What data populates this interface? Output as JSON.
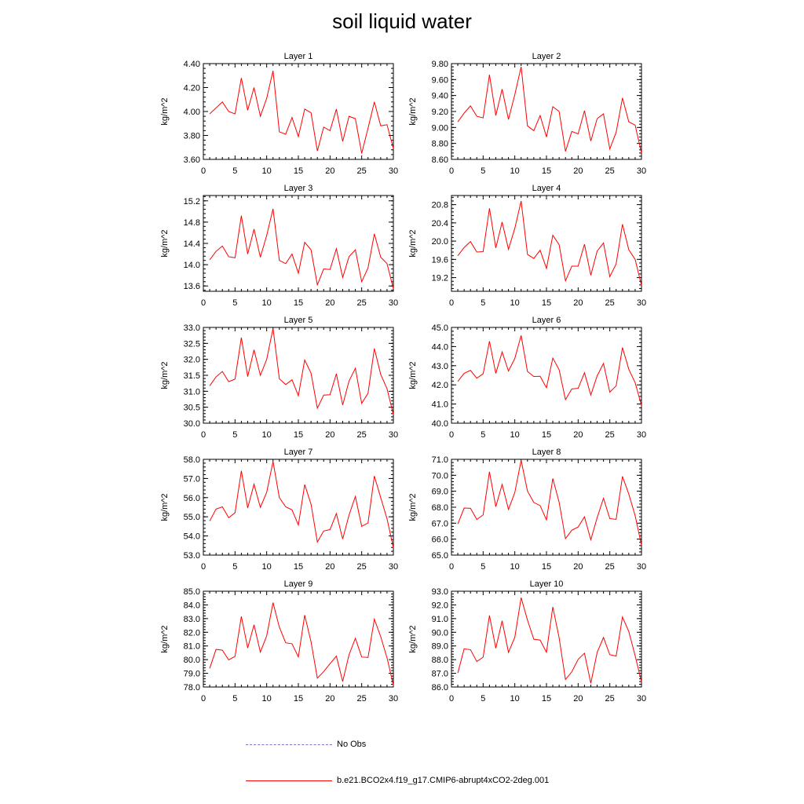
{
  "title": "soil liquid water",
  "colors": {
    "model_line": "#ff0000",
    "obs_line": "#7777cc"
  },
  "legend": [
    {
      "label": "No Obs",
      "style": "dashed",
      "color": "#7777cc"
    },
    {
      "label": "b.e21.BCO2x4.f19_g17.CMIP6-abrupt4xCO2-2deg.001",
      "style": "solid",
      "color": "#ff0000"
    }
  ],
  "chart_data": [
    {
      "type": "line",
      "title": "Layer 1",
      "xlabel": "",
      "ylabel": "kg/m^2",
      "xlim": [
        0,
        30
      ],
      "ylim": [
        3.6,
        4.4
      ],
      "xticks": [
        "0",
        "5",
        "10",
        "15",
        "20",
        "25",
        "30"
      ],
      "yticks": [
        "3.60",
        "3.80",
        "4.00",
        "4.20",
        "4.40"
      ],
      "x": [
        1,
        2,
        3,
        4,
        5,
        6,
        7,
        8,
        9,
        10,
        11,
        12,
        13,
        14,
        15,
        16,
        17,
        18,
        19,
        20,
        21,
        22,
        23,
        24,
        25,
        26,
        27,
        28,
        29,
        30
      ],
      "series": [
        {
          "values": [
            3.98,
            4.03,
            4.08,
            4.0,
            3.98,
            4.28,
            4.01,
            4.2,
            3.96,
            4.11,
            4.34,
            3.83,
            3.81,
            3.95,
            3.79,
            4.02,
            3.99,
            3.67,
            3.87,
            3.84,
            4.02,
            3.75,
            3.96,
            3.94,
            3.65,
            3.86,
            4.08,
            3.88,
            3.89,
            3.69
          ]
        }
      ]
    },
    {
      "type": "line",
      "title": "Layer 2",
      "xlabel": "",
      "ylabel": "kg/m^2",
      "xlim": [
        0,
        30
      ],
      "ylim": [
        8.6,
        9.8
      ],
      "xticks": [
        "0",
        "5",
        "10",
        "15",
        "20",
        "25",
        "30"
      ],
      "yticks": [
        "8.60",
        "8.80",
        "9.00",
        "9.20",
        "9.40",
        "9.60",
        "9.80"
      ],
      "x": [
        1,
        2,
        3,
        4,
        5,
        6,
        7,
        8,
        9,
        10,
        11,
        12,
        13,
        14,
        15,
        16,
        17,
        18,
        19,
        20,
        21,
        22,
        23,
        24,
        25,
        26,
        27,
        28,
        29,
        30
      ],
      "series": [
        {
          "values": [
            9.07,
            9.18,
            9.27,
            9.14,
            9.12,
            9.66,
            9.15,
            9.48,
            9.1,
            9.41,
            9.76,
            9.02,
            8.96,
            9.15,
            8.88,
            9.26,
            9.2,
            8.7,
            8.95,
            8.92,
            9.21,
            8.83,
            9.11,
            9.17,
            8.73,
            8.94,
            9.37,
            9.07,
            9.03,
            8.68
          ]
        }
      ]
    },
    {
      "type": "line",
      "title": "Layer 3",
      "xlabel": "",
      "ylabel": "kg/m^2",
      "xlim": [
        0,
        30
      ],
      "ylim": [
        13.5,
        15.3
      ],
      "xticks": [
        "0",
        "5",
        "10",
        "15",
        "20",
        "25",
        "30"
      ],
      "yticks": [
        "13.6",
        "14.0",
        "14.4",
        "14.8",
        "15.2"
      ],
      "x": [
        1,
        2,
        3,
        4,
        5,
        6,
        7,
        8,
        9,
        10,
        11,
        12,
        13,
        14,
        15,
        16,
        17,
        18,
        19,
        20,
        21,
        22,
        23,
        24,
        25,
        26,
        27,
        28,
        29,
        30
      ],
      "series": [
        {
          "values": [
            14.09,
            14.25,
            14.35,
            14.15,
            14.13,
            14.92,
            14.2,
            14.67,
            14.14,
            14.55,
            15.05,
            14.08,
            14.02,
            14.2,
            13.84,
            14.42,
            14.28,
            13.62,
            13.92,
            13.91,
            14.3,
            13.76,
            14.15,
            14.28,
            13.68,
            13.94,
            14.58,
            14.14,
            14.02,
            13.55
          ]
        }
      ]
    },
    {
      "type": "line",
      "title": "Layer 4",
      "xlabel": "",
      "ylabel": "kg/m^2",
      "xlim": [
        0,
        30
      ],
      "ylim": [
        18.9,
        21.0
      ],
      "xticks": [
        "0",
        "5",
        "10",
        "15",
        "20",
        "25",
        "30"
      ],
      "yticks": [
        "19.2",
        "19.6",
        "20.0",
        "20.4",
        "20.8"
      ],
      "x": [
        1,
        2,
        3,
        4,
        5,
        6,
        7,
        8,
        9,
        10,
        11,
        12,
        13,
        14,
        15,
        16,
        17,
        18,
        19,
        20,
        21,
        22,
        23,
        24,
        25,
        26,
        27,
        28,
        29,
        30
      ],
      "series": [
        {
          "values": [
            19.68,
            19.86,
            19.99,
            19.76,
            19.77,
            20.72,
            19.85,
            20.42,
            19.82,
            20.28,
            20.88,
            19.71,
            19.62,
            19.8,
            19.4,
            20.13,
            19.92,
            19.13,
            19.45,
            19.45,
            19.93,
            19.25,
            19.78,
            19.96,
            19.22,
            19.5,
            20.37,
            19.81,
            19.6,
            19.03
          ]
        }
      ]
    },
    {
      "type": "line",
      "title": "Layer 5",
      "xlabel": "",
      "ylabel": "kg/m^2",
      "xlim": [
        0,
        30
      ],
      "ylim": [
        30.0,
        33.0
      ],
      "xticks": [
        "0",
        "5",
        "10",
        "15",
        "20",
        "25",
        "30"
      ],
      "yticks": [
        "30.0",
        "30.5",
        "31.0",
        "31.5",
        "32.0",
        "32.5",
        "33.0"
      ],
      "x": [
        1,
        2,
        3,
        4,
        5,
        6,
        7,
        8,
        9,
        10,
        11,
        12,
        13,
        14,
        15,
        16,
        17,
        18,
        19,
        20,
        21,
        22,
        23,
        24,
        25,
        26,
        27,
        28,
        29,
        30
      ],
      "series": [
        {
          "values": [
            31.17,
            31.45,
            31.62,
            31.3,
            31.38,
            32.68,
            31.46,
            32.3,
            31.5,
            32.0,
            32.97,
            31.39,
            31.21,
            31.36,
            30.86,
            31.98,
            31.57,
            30.47,
            30.88,
            30.89,
            31.55,
            30.57,
            31.32,
            31.72,
            30.62,
            30.94,
            32.34,
            31.53,
            31.08,
            30.27
          ]
        }
      ]
    },
    {
      "type": "line",
      "title": "Layer 6",
      "xlabel": "",
      "ylabel": "kg/m^2",
      "xlim": [
        0,
        30
      ],
      "ylim": [
        40.0,
        45.0
      ],
      "xticks": [
        "0",
        "5",
        "10",
        "15",
        "20",
        "25",
        "30"
      ],
      "yticks": [
        "40.0",
        "41.0",
        "42.0",
        "43.0",
        "44.0",
        "45.0"
      ],
      "x": [
        1,
        2,
        3,
        4,
        5,
        6,
        7,
        8,
        9,
        10,
        11,
        12,
        13,
        14,
        15,
        16,
        17,
        18,
        19,
        20,
        21,
        22,
        23,
        24,
        25,
        26,
        27,
        28,
        29,
        30
      ],
      "series": [
        {
          "values": [
            42.18,
            42.6,
            42.76,
            42.35,
            42.58,
            44.28,
            42.6,
            43.72,
            42.72,
            43.38,
            44.58,
            42.7,
            42.44,
            42.45,
            41.85,
            43.4,
            42.79,
            41.23,
            41.79,
            41.82,
            42.63,
            41.47,
            42.47,
            43.12,
            41.62,
            41.95,
            43.95,
            42.81,
            42.12,
            40.92
          ]
        }
      ]
    },
    {
      "type": "line",
      "title": "Layer 7",
      "xlabel": "",
      "ylabel": "kg/m^2",
      "xlim": [
        0,
        30
      ],
      "ylim": [
        53.0,
        58.0
      ],
      "xticks": [
        "0",
        "5",
        "10",
        "15",
        "20",
        "25",
        "30"
      ],
      "yticks": [
        "53.0",
        "54.0",
        "55.0",
        "56.0",
        "57.0",
        "58.0"
      ],
      "x": [
        1,
        2,
        3,
        4,
        5,
        6,
        7,
        8,
        9,
        10,
        11,
        12,
        13,
        14,
        15,
        16,
        17,
        18,
        19,
        20,
        21,
        22,
        23,
        24,
        25,
        26,
        27,
        28,
        29,
        30
      ],
      "series": [
        {
          "values": [
            54.78,
            55.4,
            55.52,
            54.95,
            55.21,
            57.4,
            55.46,
            56.7,
            55.49,
            56.28,
            57.89,
            56.0,
            55.52,
            55.36,
            54.57,
            56.68,
            55.66,
            53.68,
            54.26,
            54.33,
            55.17,
            53.84,
            55.09,
            56.06,
            54.5,
            54.68,
            57.13,
            56.0,
            54.9,
            53.38
          ]
        }
      ]
    },
    {
      "type": "line",
      "title": "Layer 8",
      "xlabel": "",
      "ylabel": "kg/m^2",
      "xlim": [
        0,
        30
      ],
      "ylim": [
        65.0,
        71.0
      ],
      "xticks": [
        "0",
        "5",
        "10",
        "15",
        "20",
        "25",
        "30"
      ],
      "yticks": [
        "65.0",
        "66.0",
        "67.0",
        "68.0",
        "69.0",
        "70.0",
        "71.0"
      ],
      "x": [
        1,
        2,
        3,
        4,
        5,
        6,
        7,
        8,
        9,
        10,
        11,
        12,
        13,
        14,
        15,
        16,
        17,
        18,
        19,
        20,
        21,
        22,
        23,
        24,
        25,
        26,
        27,
        28,
        29,
        30
      ],
      "series": [
        {
          "values": [
            66.95,
            67.95,
            67.93,
            67.23,
            67.52,
            70.22,
            68.03,
            69.43,
            67.86,
            68.92,
            70.94,
            69.01,
            68.3,
            68.1,
            67.21,
            69.8,
            68.31,
            66.03,
            66.56,
            66.76,
            67.4,
            65.96,
            67.34,
            68.56,
            67.29,
            67.24,
            69.93,
            68.82,
            67.47,
            65.62
          ]
        }
      ]
    },
    {
      "type": "line",
      "title": "Layer 9",
      "xlabel": "",
      "ylabel": "kg/m^2",
      "xlim": [
        0,
        30
      ],
      "ylim": [
        78.0,
        85.0
      ],
      "xticks": [
        "0",
        "5",
        "10",
        "15",
        "20",
        "25",
        "30"
      ],
      "yticks": [
        "78.0",
        "79.0",
        "80.0",
        "81.0",
        "82.0",
        "83.0",
        "84.0",
        "85.0"
      ],
      "x": [
        1,
        2,
        3,
        4,
        5,
        6,
        7,
        8,
        9,
        10,
        11,
        12,
        13,
        14,
        15,
        16,
        17,
        18,
        19,
        20,
        21,
        22,
        23,
        24,
        25,
        26,
        27,
        28,
        29,
        30
      ],
      "series": [
        {
          "values": [
            79.36,
            80.75,
            80.69,
            79.98,
            80.24,
            83.16,
            80.85,
            82.55,
            80.55,
            81.74,
            84.17,
            82.37,
            81.23,
            81.16,
            80.2,
            83.25,
            81.31,
            78.65,
            79.13,
            79.7,
            80.26,
            78.4,
            80.36,
            81.56,
            80.19,
            80.16,
            82.96,
            81.68,
            80.13,
            78.14
          ]
        }
      ]
    },
    {
      "type": "line",
      "title": "Layer 10",
      "xlabel": "",
      "ylabel": "kg/m^2",
      "xlim": [
        0,
        30
      ],
      "ylim": [
        86.0,
        93.0
      ],
      "xticks": [
        "0",
        "5",
        "10",
        "15",
        "20",
        "25",
        "30"
      ],
      "yticks": [
        "86.0",
        "87.0",
        "88.0",
        "89.0",
        "90.0",
        "91.0",
        "92.0",
        "93.0"
      ],
      "x": [
        1,
        2,
        3,
        4,
        5,
        6,
        7,
        8,
        9,
        10,
        11,
        12,
        13,
        14,
        15,
        16,
        17,
        18,
        19,
        20,
        21,
        22,
        23,
        24,
        25,
        26,
        27,
        28,
        29,
        30
      ],
      "series": [
        {
          "values": [
            87.02,
            88.79,
            88.73,
            87.86,
            88.18,
            91.23,
            88.83,
            90.84,
            88.53,
            89.63,
            92.53,
            90.89,
            89.49,
            89.43,
            88.54,
            91.85,
            89.59,
            86.55,
            87.11,
            88.02,
            88.47,
            86.27,
            88.52,
            89.62,
            88.36,
            88.26,
            91.12,
            90.05,
            88.29,
            86.38
          ]
        }
      ]
    }
  ]
}
